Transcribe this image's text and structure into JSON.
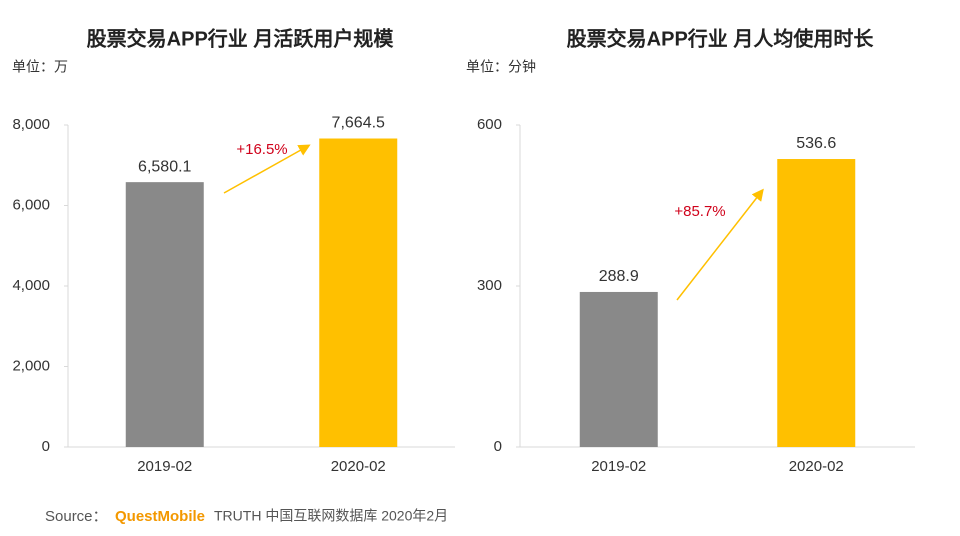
{
  "chart_data": [
    {
      "type": "bar",
      "title": "股票交易APP行业 月活跃用户规模",
      "unit": "单位：万",
      "categories": [
        "2019-02",
        "2020-02"
      ],
      "values": [
        6580.1,
        7664.5
      ],
      "value_labels": [
        "6,580.1",
        "7,664.5"
      ],
      "colors": [
        "#898989",
        "#ffc000"
      ],
      "ylim": [
        0,
        8000
      ],
      "yticks": [
        0,
        {
          "value": 2000,
          "label": "2,000"
        },
        {
          "value": 4000,
          "label": "4,000"
        },
        {
          "value": 6000,
          "label": "6,000"
        },
        {
          "value": 8000,
          "label": "8,000"
        }
      ],
      "annotation": "+16.5%"
    },
    {
      "type": "bar",
      "title": "股票交易APP行业 月人均使用时长",
      "unit": "单位：分钟",
      "categories": [
        "2019-02",
        "2020-02"
      ],
      "values": [
        288.9,
        536.6
      ],
      "colors": [
        "#898989",
        "#ffc000"
      ],
      "ylim": [
        0,
        600
      ],
      "yticks": [
        0,
        300,
        600
      ],
      "annotation": "+85.7%"
    }
  ],
  "footer": {
    "label": "Source：",
    "brand": "QuestMobile",
    "text": "TRUTH 中国互联网数据库 2020年2月"
  }
}
